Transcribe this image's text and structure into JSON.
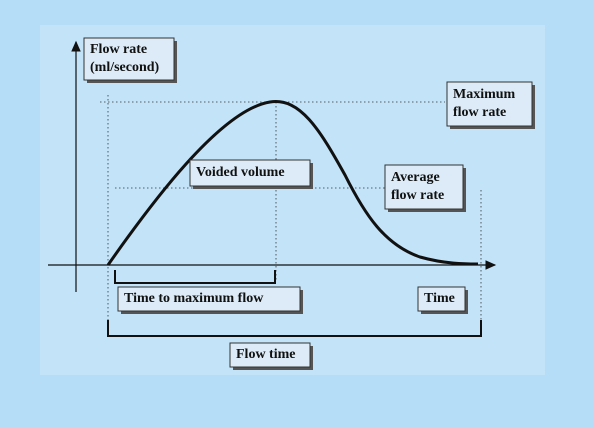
{
  "y_axis_label": {
    "lines": [
      "Flow rate",
      "(ml/second)"
    ]
  },
  "labels": {
    "maximum_flow_rate": {
      "lines": [
        "Maximum",
        "flow rate"
      ]
    },
    "voided_volume": {
      "lines": [
        "Voided volume"
      ]
    },
    "average_flow_rate": {
      "lines": [
        "Average",
        "flow rate"
      ]
    },
    "time_to_maximum_flow": {
      "lines": [
        "Time to maximum flow"
      ]
    },
    "time": {
      "lines": [
        "Time"
      ]
    },
    "flow_time": {
      "lines": [
        "Flow time"
      ]
    }
  }
}
